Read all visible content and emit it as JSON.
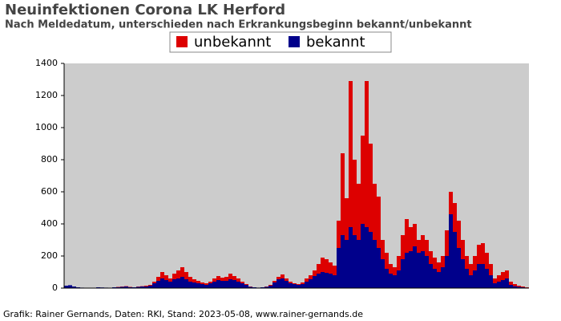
{
  "chart_data": {
    "type": "stacked-bar",
    "title": "Neuinfektionen Corona LK Herford",
    "subtitle": "Nach Meldedatum, unterschieden nach Erkrankungsbeginn bekannt/unbekannt",
    "footer": "Grafik: Rainer Gernands, Daten: RKI, Stand: 2023-05-08, www.rainer-gernands.de",
    "categories": [
      null,
      null,
      null,
      null,
      null,
      null,
      null,
      null,
      null,
      null,
      null,
      null,
      null,
      null,
      null,
      null,
      null,
      null,
      null,
      null,
      null,
      null,
      null,
      null,
      null,
      null,
      null,
      null,
      null,
      null,
      null,
      null,
      null,
      null,
      null,
      null,
      null,
      null,
      null,
      null,
      null,
      null,
      null,
      null,
      null,
      null,
      null,
      null,
      null,
      null,
      null,
      null,
      null,
      null,
      null,
      null,
      null,
      null,
      null,
      null,
      null,
      null,
      null,
      null,
      null,
      null,
      null,
      null,
      null,
      null,
      null,
      null,
      null,
      null,
      null,
      null,
      null,
      null,
      null,
      null,
      null,
      null,
      null,
      null,
      null,
      null,
      null,
      null,
      null,
      null,
      null,
      null,
      null,
      null,
      null,
      null,
      null,
      null,
      null,
      null,
      null,
      null,
      null,
      null,
      null,
      null,
      null,
      null,
      null,
      null,
      null,
      null,
      null,
      null,
      null,
      null
    ],
    "series": [
      {
        "name": "unbekannt",
        "color": "#dd0000",
        "values": [
          0,
          0,
          0,
          0,
          0,
          0,
          0,
          0,
          0,
          0,
          0,
          0,
          0,
          2,
          2,
          2,
          2,
          0,
          2,
          2,
          5,
          5,
          10,
          25,
          40,
          30,
          20,
          35,
          50,
          60,
          45,
          30,
          20,
          15,
          10,
          10,
          10,
          20,
          25,
          20,
          25,
          35,
          25,
          20,
          10,
          5,
          2,
          0,
          0,
          0,
          2,
          5,
          10,
          15,
          25,
          15,
          10,
          5,
          5,
          10,
          20,
          25,
          35,
          60,
          90,
          85,
          70,
          60,
          170,
          510,
          260,
          910,
          470,
          350,
          550,
          910,
          550,
          350,
          320,
          120,
          100,
          60,
          50,
          90,
          150,
          210,
          150,
          140,
          80,
          100,
          100,
          80,
          70,
          60,
          70,
          160,
          140,
          180,
          170,
          120,
          80,
          70,
          90,
          120,
          130,
          100,
          70,
          30,
          40,
          50,
          50,
          20,
          13,
          7,
          5,
          2
        ]
      },
      {
        "name": "bekannt",
        "color": "#00008b",
        "values": [
          15,
          18,
          10,
          5,
          3,
          2,
          0,
          2,
          5,
          4,
          3,
          2,
          5,
          6,
          8,
          10,
          6,
          5,
          8,
          10,
          10,
          15,
          30,
          45,
          60,
          50,
          40,
          55,
          60,
          70,
          55,
          40,
          35,
          30,
          25,
          20,
          30,
          40,
          50,
          45,
          45,
          55,
          50,
          40,
          30,
          20,
          8,
          5,
          3,
          5,
          8,
          15,
          35,
          55,
          60,
          45,
          30,
          25,
          20,
          25,
          40,
          55,
          75,
          90,
          100,
          95,
          90,
          80,
          250,
          330,
          300,
          380,
          330,
          300,
          400,
          380,
          350,
          300,
          250,
          180,
          120,
          90,
          80,
          110,
          180,
          220,
          230,
          260,
          220,
          230,
          200,
          150,
          120,
          100,
          130,
          200,
          460,
          350,
          250,
          180,
          120,
          80,
          110,
          150,
          150,
          120,
          80,
          30,
          40,
          50,
          60,
          20,
          12,
          8,
          5,
          3
        ]
      }
    ],
    "ylim": [
      0,
      1400
    ],
    "yticks": [
      0,
      200,
      400,
      600,
      800,
      1000,
      1200,
      1400
    ],
    "background": "#cccccc",
    "legend": "top"
  }
}
